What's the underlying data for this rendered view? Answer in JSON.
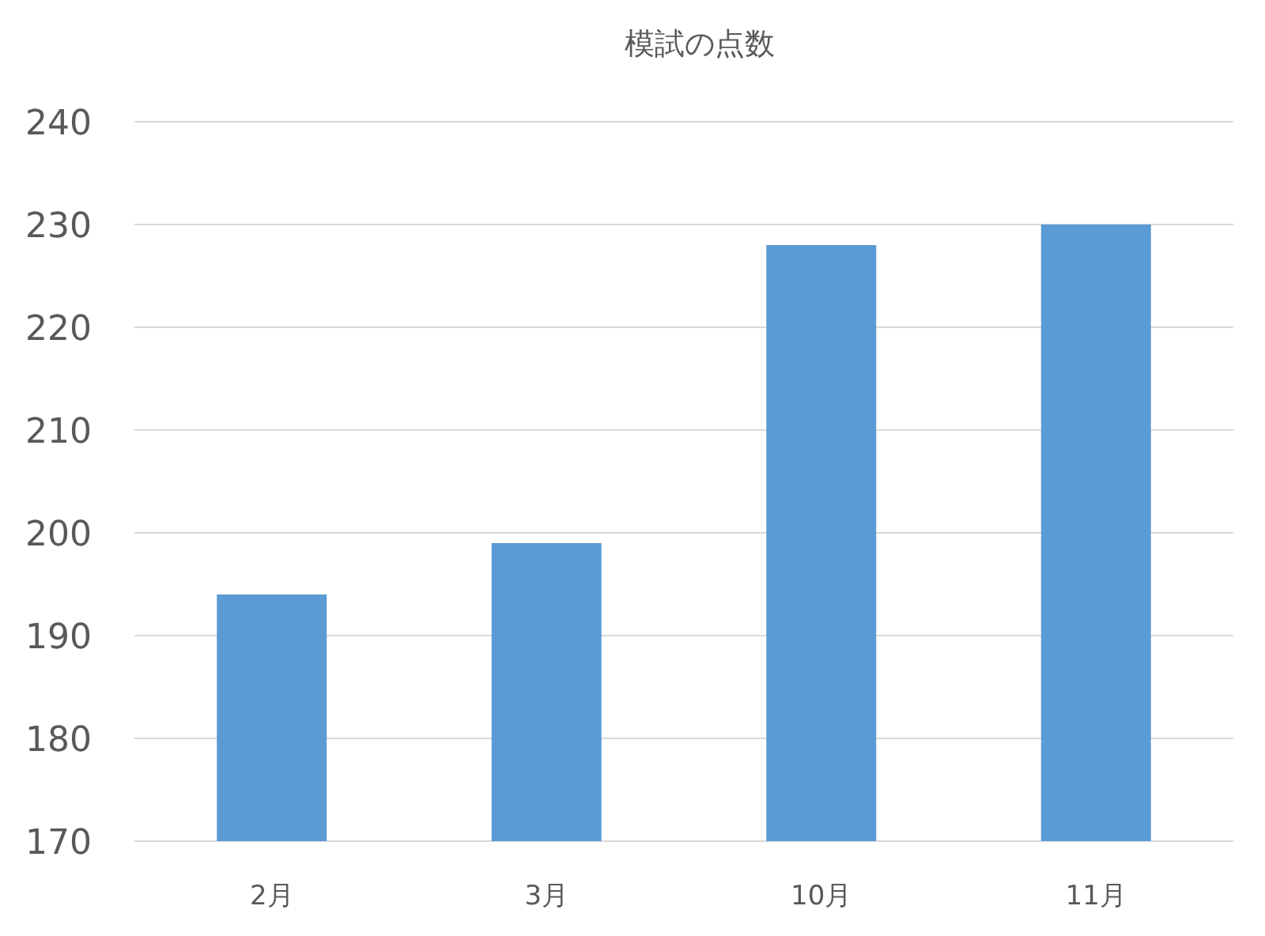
{
  "chart_data": {
    "type": "bar",
    "title": "模試の点数",
    "categories": [
      "2月",
      "3月",
      "10月",
      "11月"
    ],
    "values": [
      194,
      199,
      228,
      230
    ],
    "color": "#5b9bd5",
    "ylim": [
      170,
      240
    ],
    "yticks": [
      170,
      180,
      190,
      200,
      210,
      220,
      230,
      240
    ],
    "grid": "y"
  }
}
